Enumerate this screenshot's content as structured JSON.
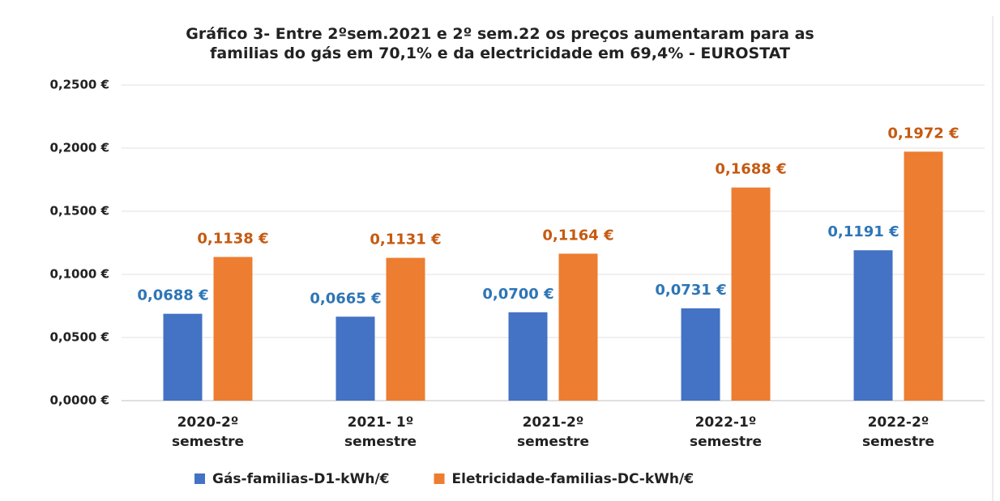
{
  "chart_data": {
    "type": "bar",
    "title": "Gráfico 3- Entre 2ºsem.2021 e 2º sem.22 os  preços aumentaram para as\nfamilias  do gás  em 70,1%  e da electricidade em 69,4% - EUROSTAT",
    "categories": [
      "2020-2º\nsemestre",
      "2021- 1º\nsemestre",
      "2021-2º\nsemestre",
      "2022-1º\nsemestre",
      "2022-2º\nsemestre"
    ],
    "series": [
      {
        "name": "Gás-familias-D1-kWh/€",
        "color": "#4472c4",
        "label_color": "#2e75b6",
        "values": [
          0.0688,
          0.0665,
          0.07,
          0.0731,
          0.1191
        ],
        "value_labels": [
          "0,0688 €",
          "0,0665 €",
          "0,0700 €",
          "0,0731 €",
          "0,1191 €"
        ]
      },
      {
        "name": "Eletricidade-familias-DC-kWh/€",
        "color": "#ed7d31",
        "label_color": "#c55a11",
        "values": [
          0.1138,
          0.1131,
          0.1164,
          0.1688,
          0.1972
        ],
        "value_labels": [
          "0,1138 €",
          "0,1131 €",
          "0,1164 €",
          "0,1688 €",
          "0,1972 €"
        ]
      }
    ],
    "ylim": [
      0,
      0.25
    ],
    "yticks": [
      {
        "value": 0,
        "label": "0,0000 €"
      },
      {
        "value": 0.05,
        "label": "0,0500 €"
      },
      {
        "value": 0.1,
        "label": "0,1000 €"
      },
      {
        "value": 0.15,
        "label": "0,1500 €"
      },
      {
        "value": 0.2,
        "label": "0,2000 €"
      },
      {
        "value": 0.25,
        "label": "0,2500 €"
      }
    ],
    "grid": true
  }
}
